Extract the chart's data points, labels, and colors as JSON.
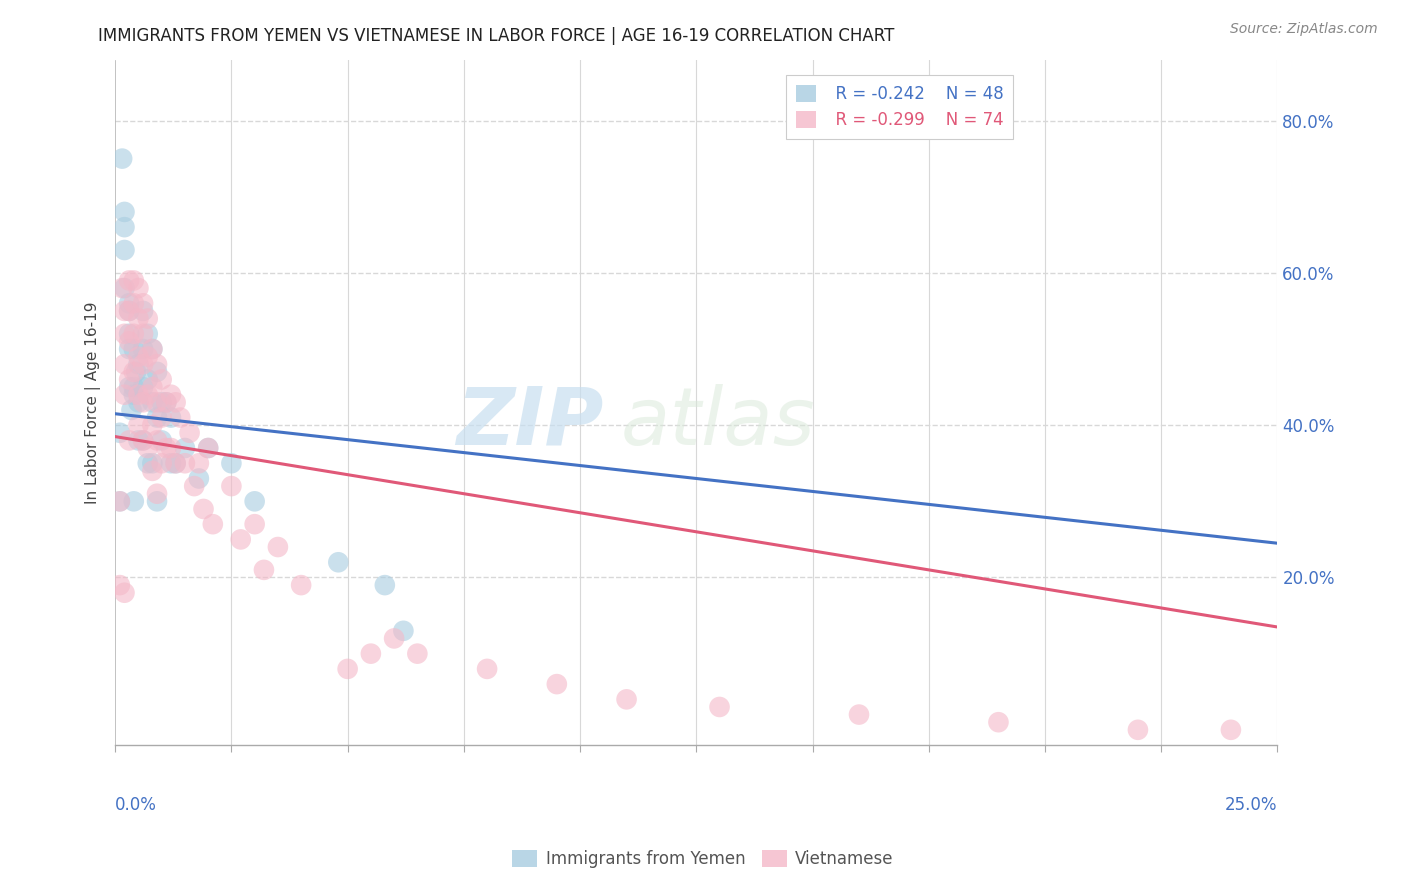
{
  "title": "IMMIGRANTS FROM YEMEN VS VIETNAMESE IN LABOR FORCE | AGE 16-19 CORRELATION CHART",
  "source": "Source: ZipAtlas.com",
  "ylabel": "In Labor Force | Age 16-19",
  "ylabel_right_ticks": [
    "80.0%",
    "60.0%",
    "40.0%",
    "20.0%"
  ],
  "ylabel_right_vals": [
    0.8,
    0.6,
    0.4,
    0.2
  ],
  "xlim": [
    0.0,
    0.25
  ],
  "ylim": [
    -0.02,
    0.88
  ],
  "legend_r_yemen": "R = -0.242",
  "legend_n_yemen": "N = 48",
  "legend_r_viet": "R = -0.299",
  "legend_n_viet": "N = 74",
  "color_yemen": "#a8cce0",
  "color_viet": "#f4b8c8",
  "color_yemen_line": "#4472c4",
  "color_viet_line": "#e05878",
  "watermark_zip": "ZIP",
  "watermark_atlas": "atlas",
  "background_color": "#ffffff",
  "grid_color": "#d8d8d8",
  "yemen_line_x0": 0.0,
  "yemen_line_y0": 0.415,
  "yemen_line_x1": 0.25,
  "yemen_line_y1": 0.245,
  "viet_line_x0": 0.0,
  "viet_line_y0": 0.385,
  "viet_line_x1": 0.25,
  "viet_line_y1": 0.135,
  "yemen_x": [
    0.001,
    0.001,
    0.0015,
    0.002,
    0.002,
    0.002,
    0.002,
    0.003,
    0.003,
    0.003,
    0.003,
    0.003,
    0.0035,
    0.004,
    0.004,
    0.004,
    0.004,
    0.0045,
    0.005,
    0.005,
    0.005,
    0.006,
    0.006,
    0.006,
    0.006,
    0.007,
    0.007,
    0.007,
    0.008,
    0.008,
    0.008,
    0.009,
    0.009,
    0.009,
    0.01,
    0.01,
    0.011,
    0.012,
    0.012,
    0.013,
    0.015,
    0.018,
    0.02,
    0.025,
    0.03,
    0.048,
    0.058,
    0.062
  ],
  "yemen_y": [
    0.39,
    0.3,
    0.75,
    0.68,
    0.66,
    0.63,
    0.58,
    0.56,
    0.55,
    0.52,
    0.5,
    0.45,
    0.42,
    0.5,
    0.45,
    0.44,
    0.3,
    0.47,
    0.48,
    0.43,
    0.38,
    0.55,
    0.5,
    0.45,
    0.38,
    0.52,
    0.46,
    0.35,
    0.5,
    0.43,
    0.35,
    0.47,
    0.41,
    0.3,
    0.43,
    0.38,
    0.43,
    0.41,
    0.35,
    0.35,
    0.37,
    0.33,
    0.37,
    0.35,
    0.3,
    0.22,
    0.19,
    0.13
  ],
  "viet_x": [
    0.001,
    0.001,
    0.0015,
    0.002,
    0.002,
    0.002,
    0.002,
    0.002,
    0.003,
    0.003,
    0.003,
    0.003,
    0.003,
    0.004,
    0.004,
    0.004,
    0.004,
    0.005,
    0.005,
    0.005,
    0.005,
    0.005,
    0.006,
    0.006,
    0.006,
    0.006,
    0.006,
    0.007,
    0.007,
    0.007,
    0.007,
    0.008,
    0.008,
    0.008,
    0.008,
    0.009,
    0.009,
    0.009,
    0.009,
    0.01,
    0.01,
    0.01,
    0.011,
    0.011,
    0.012,
    0.012,
    0.013,
    0.013,
    0.014,
    0.015,
    0.016,
    0.017,
    0.018,
    0.019,
    0.02,
    0.021,
    0.025,
    0.027,
    0.03,
    0.032,
    0.035,
    0.04,
    0.05,
    0.055,
    0.06,
    0.065,
    0.08,
    0.095,
    0.11,
    0.13,
    0.16,
    0.19,
    0.22,
    0.24
  ],
  "viet_y": [
    0.3,
    0.19,
    0.58,
    0.55,
    0.52,
    0.48,
    0.44,
    0.18,
    0.59,
    0.55,
    0.51,
    0.46,
    0.38,
    0.59,
    0.56,
    0.52,
    0.47,
    0.58,
    0.54,
    0.49,
    0.44,
    0.4,
    0.56,
    0.52,
    0.48,
    0.43,
    0.38,
    0.54,
    0.49,
    0.44,
    0.37,
    0.5,
    0.45,
    0.4,
    0.34,
    0.48,
    0.43,
    0.38,
    0.31,
    0.46,
    0.41,
    0.35,
    0.43,
    0.37,
    0.44,
    0.37,
    0.43,
    0.35,
    0.41,
    0.35,
    0.39,
    0.32,
    0.35,
    0.29,
    0.37,
    0.27,
    0.32,
    0.25,
    0.27,
    0.21,
    0.24,
    0.19,
    0.08,
    0.1,
    0.12,
    0.1,
    0.08,
    0.06,
    0.04,
    0.03,
    0.02,
    0.01,
    0.0,
    0.0
  ]
}
